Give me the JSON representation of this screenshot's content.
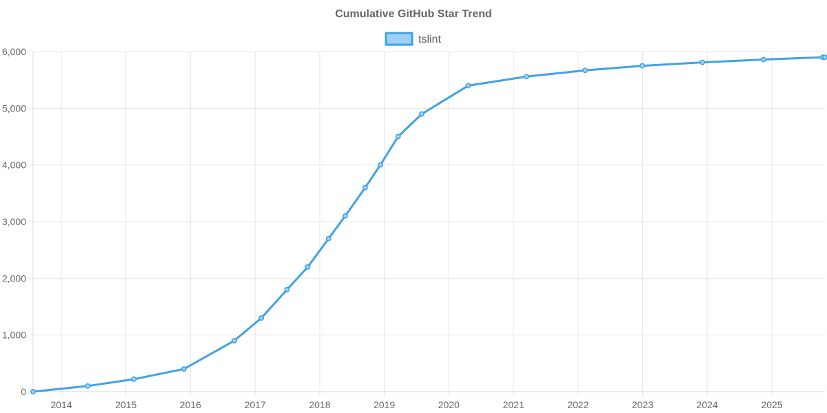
{
  "chart_data": {
    "type": "line",
    "title": "Cumulative GitHub Star Trend",
    "xlabel": "",
    "ylabel": "",
    "xlim": [
      "2013-07-25",
      "2025-10-28"
    ],
    "ylim": [
      0,
      6000
    ],
    "x_ticks": [
      "2014",
      "2015",
      "2016",
      "2017",
      "2018",
      "2019",
      "2020",
      "2021",
      "2022",
      "2023",
      "2024",
      "2025"
    ],
    "y_ticks": [
      0,
      1000,
      2000,
      3000,
      4000,
      5000,
      6000
    ],
    "y_tick_labels": [
      "0",
      "1,000",
      "2,000",
      "3,000",
      "4,000",
      "5,000",
      "6,000"
    ],
    "grid": true,
    "legend_position": "top-center",
    "series": [
      {
        "name": "tslint",
        "color": "#3fa2e3",
        "fill": "#9fd0f1",
        "points": [
          {
            "x": "2013-07-25",
            "y": 0
          },
          {
            "x": "2014-05-30",
            "y": 100
          },
          {
            "x": "2015-02-15",
            "y": 220
          },
          {
            "x": "2015-11-25",
            "y": 400
          },
          {
            "x": "2016-09-05",
            "y": 900
          },
          {
            "x": "2017-02-05",
            "y": 1300
          },
          {
            "x": "2017-06-30",
            "y": 1800
          },
          {
            "x": "2017-10-25",
            "y": 2200
          },
          {
            "x": "2018-02-20",
            "y": 2700
          },
          {
            "x": "2018-05-25",
            "y": 3100
          },
          {
            "x": "2018-09-15",
            "y": 3600
          },
          {
            "x": "2018-12-10",
            "y": 4000
          },
          {
            "x": "2019-03-20",
            "y": 4500
          },
          {
            "x": "2019-08-01",
            "y": 4900
          },
          {
            "x": "2020-04-20",
            "y": 5400
          },
          {
            "x": "2021-03-15",
            "y": 5560
          },
          {
            "x": "2022-02-10",
            "y": 5670
          },
          {
            "x": "2022-12-30",
            "y": 5750
          },
          {
            "x": "2023-12-05",
            "y": 5810
          },
          {
            "x": "2024-11-15",
            "y": 5860
          },
          {
            "x": "2025-10-15",
            "y": 5900
          },
          {
            "x": "2025-10-28",
            "y": 5900
          }
        ]
      }
    ]
  }
}
